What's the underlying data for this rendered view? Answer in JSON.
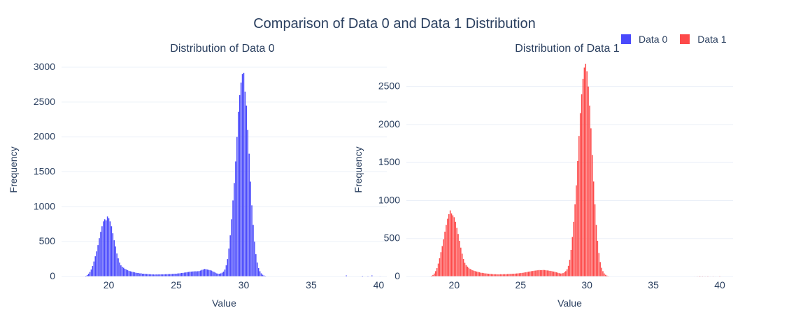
{
  "title": "Comparison of Data 0 and Data 1 Distribution",
  "legend": [
    {
      "name": "Data 0",
      "color": "#4a4afc"
    },
    {
      "name": "Data 1",
      "color": "#fd4a4a"
    }
  ],
  "chart_data": [
    {
      "type": "bar",
      "subtitle": "Distribution of Data 0",
      "series_name": "Data 0",
      "color": "#4a4afc",
      "xlabel": "Value",
      "ylabel": "Frequency",
      "xlim": [
        16.5,
        40.6
      ],
      "ylim": [
        0,
        3060
      ],
      "xticks": [
        20,
        25,
        30,
        35,
        40
      ],
      "yticks": [
        0,
        500,
        1000,
        1500,
        2000,
        2500,
        3000
      ],
      "bin_width": 0.1,
      "bins": [
        [
          18.2,
          5
        ],
        [
          18.3,
          10
        ],
        [
          18.4,
          20
        ],
        [
          18.5,
          40
        ],
        [
          18.6,
          65
        ],
        [
          18.7,
          100
        ],
        [
          18.8,
          150
        ],
        [
          18.9,
          215
        ],
        [
          19.0,
          290
        ],
        [
          19.1,
          360
        ],
        [
          19.2,
          450
        ],
        [
          19.3,
          550
        ],
        [
          19.4,
          640
        ],
        [
          19.5,
          720
        ],
        [
          19.6,
          790
        ],
        [
          19.7,
          820
        ],
        [
          19.8,
          805
        ],
        [
          19.9,
          860
        ],
        [
          20.0,
          835
        ],
        [
          20.1,
          790
        ],
        [
          20.2,
          720
        ],
        [
          20.3,
          620
        ],
        [
          20.4,
          520
        ],
        [
          20.5,
          430
        ],
        [
          20.6,
          330
        ],
        [
          20.7,
          260
        ],
        [
          20.8,
          200
        ],
        [
          20.9,
          160
        ],
        [
          21.0,
          140
        ],
        [
          21.1,
          125
        ],
        [
          21.2,
          110
        ],
        [
          21.3,
          100
        ],
        [
          21.4,
          90
        ],
        [
          21.5,
          80
        ],
        [
          21.6,
          75
        ],
        [
          21.7,
          70
        ],
        [
          21.8,
          65
        ],
        [
          21.9,
          60
        ],
        [
          22.0,
          55
        ],
        [
          22.1,
          50
        ],
        [
          22.2,
          50
        ],
        [
          22.3,
          45
        ],
        [
          22.4,
          45
        ],
        [
          22.5,
          40
        ],
        [
          22.6,
          40
        ],
        [
          22.7,
          38
        ],
        [
          22.8,
          36
        ],
        [
          22.9,
          35
        ],
        [
          23.0,
          33
        ],
        [
          23.1,
          32
        ],
        [
          23.2,
          30
        ],
        [
          23.3,
          30
        ],
        [
          23.4,
          28
        ],
        [
          23.5,
          30
        ],
        [
          23.6,
          29
        ],
        [
          23.7,
          30
        ],
        [
          23.8,
          30
        ],
        [
          23.9,
          31
        ],
        [
          24.0,
          30
        ],
        [
          24.1,
          32
        ],
        [
          24.2,
          33
        ],
        [
          24.3,
          33
        ],
        [
          24.4,
          34
        ],
        [
          24.5,
          35
        ],
        [
          24.6,
          35
        ],
        [
          24.7,
          37
        ],
        [
          24.8,
          38
        ],
        [
          24.9,
          40
        ],
        [
          25.0,
          40
        ],
        [
          25.1,
          43
        ],
        [
          25.2,
          45
        ],
        [
          25.3,
          47
        ],
        [
          25.4,
          50
        ],
        [
          25.5,
          52
        ],
        [
          25.6,
          56
        ],
        [
          25.7,
          58
        ],
        [
          25.8,
          62
        ],
        [
          25.9,
          65
        ],
        [
          26.0,
          68
        ],
        [
          26.1,
          70
        ],
        [
          26.2,
          72
        ],
        [
          26.3,
          73
        ],
        [
          26.4,
          75
        ],
        [
          26.5,
          74
        ],
        [
          26.6,
          76
        ],
        [
          26.7,
          78
        ],
        [
          26.8,
          85
        ],
        [
          26.9,
          95
        ],
        [
          27.0,
          100
        ],
        [
          27.1,
          108
        ],
        [
          27.2,
          105
        ],
        [
          27.3,
          100
        ],
        [
          27.4,
          95
        ],
        [
          27.5,
          92
        ],
        [
          27.6,
          85
        ],
        [
          27.7,
          75
        ],
        [
          27.8,
          65
        ],
        [
          27.9,
          55
        ],
        [
          28.0,
          45
        ],
        [
          28.1,
          40
        ],
        [
          28.2,
          40
        ],
        [
          28.3,
          45
        ],
        [
          28.4,
          55
        ],
        [
          28.5,
          70
        ],
        [
          28.6,
          100
        ],
        [
          28.7,
          160
        ],
        [
          28.8,
          250
        ],
        [
          28.9,
          400
        ],
        [
          29.0,
          590
        ],
        [
          29.1,
          820
        ],
        [
          29.2,
          1090
        ],
        [
          29.3,
          1340
        ],
        [
          29.4,
          1650
        ],
        [
          29.5,
          2000
        ],
        [
          29.6,
          2360
        ],
        [
          29.7,
          2600
        ],
        [
          29.8,
          2780
        ],
        [
          29.9,
          2900
        ],
        [
          30.0,
          2920
        ],
        [
          30.1,
          2650
        ],
        [
          30.2,
          2450
        ],
        [
          30.3,
          2100
        ],
        [
          30.4,
          1760
        ],
        [
          30.5,
          1360
        ],
        [
          30.6,
          1020
        ],
        [
          30.7,
          740
        ],
        [
          30.8,
          500
        ],
        [
          30.9,
          320
        ],
        [
          31.0,
          200
        ],
        [
          31.1,
          120
        ],
        [
          31.2,
          75
        ],
        [
          31.3,
          45
        ],
        [
          31.4,
          25
        ],
        [
          31.5,
          15
        ],
        [
          31.6,
          8
        ],
        [
          31.7,
          5
        ],
        [
          31.8,
          3
        ],
        [
          31.9,
          2
        ],
        [
          36.1,
          2
        ],
        [
          37.2,
          3
        ],
        [
          37.6,
          15
        ],
        [
          38.0,
          4
        ],
        [
          38.5,
          3
        ],
        [
          38.8,
          10
        ],
        [
          39.0,
          3
        ],
        [
          39.2,
          8
        ],
        [
          39.5,
          15
        ],
        [
          39.8,
          5
        ],
        [
          40.1,
          6
        ],
        [
          40.4,
          4
        ]
      ]
    },
    {
      "type": "bar",
      "subtitle": "Distribution of Data 1",
      "series_name": "Data 1",
      "color": "#fd4a4a",
      "xlabel": "Value",
      "ylabel": "Frequency",
      "xlim": [
        16.4,
        41.0
      ],
      "ylim": [
        0,
        2810
      ],
      "xticks": [
        20,
        25,
        30,
        35,
        40
      ],
      "yticks": [
        0,
        500,
        1000,
        1500,
        2000,
        2500
      ],
      "bin_width": 0.1,
      "bins": [
        [
          18.2,
          5
        ],
        [
          18.3,
          10
        ],
        [
          18.4,
          20
        ],
        [
          18.5,
          40
        ],
        [
          18.6,
          70
        ],
        [
          18.7,
          110
        ],
        [
          18.8,
          170
        ],
        [
          18.9,
          240
        ],
        [
          19.0,
          320
        ],
        [
          19.1,
          400
        ],
        [
          19.2,
          490
        ],
        [
          19.3,
          590
        ],
        [
          19.4,
          680
        ],
        [
          19.5,
          760
        ],
        [
          19.6,
          820
        ],
        [
          19.7,
          870
        ],
        [
          19.8,
          830
        ],
        [
          19.9,
          805
        ],
        [
          20.0,
          780
        ],
        [
          20.1,
          720
        ],
        [
          20.2,
          640
        ],
        [
          20.3,
          560
        ],
        [
          20.4,
          470
        ],
        [
          20.5,
          380
        ],
        [
          20.6,
          300
        ],
        [
          20.7,
          230
        ],
        [
          20.8,
          180
        ],
        [
          20.9,
          150
        ],
        [
          21.0,
          130
        ],
        [
          21.1,
          115
        ],
        [
          21.2,
          100
        ],
        [
          21.3,
          90
        ],
        [
          21.4,
          82
        ],
        [
          21.5,
          75
        ],
        [
          21.6,
          70
        ],
        [
          21.7,
          65
        ],
        [
          21.8,
          60
        ],
        [
          21.9,
          55
        ],
        [
          22.0,
          50
        ],
        [
          22.1,
          48
        ],
        [
          22.2,
          45
        ],
        [
          22.3,
          42
        ],
        [
          22.4,
          40
        ],
        [
          22.5,
          38
        ],
        [
          22.6,
          36
        ],
        [
          22.7,
          34
        ],
        [
          22.8,
          33
        ],
        [
          22.9,
          31
        ],
        [
          23.0,
          30
        ],
        [
          23.1,
          30
        ],
        [
          23.2,
          29
        ],
        [
          23.3,
          28
        ],
        [
          23.4,
          28
        ],
        [
          23.5,
          30
        ],
        [
          23.6,
          29
        ],
        [
          23.7,
          30
        ],
        [
          23.8,
          31
        ],
        [
          23.9,
          30
        ],
        [
          24.0,
          32
        ],
        [
          24.1,
          33
        ],
        [
          24.2,
          34
        ],
        [
          24.3,
          35
        ],
        [
          24.4,
          36
        ],
        [
          24.5,
          37
        ],
        [
          24.6,
          38
        ],
        [
          24.7,
          40
        ],
        [
          24.8,
          41
        ],
        [
          24.9,
          43
        ],
        [
          25.0,
          45
        ],
        [
          25.1,
          47
        ],
        [
          25.2,
          50
        ],
        [
          25.3,
          53
        ],
        [
          25.4,
          56
        ],
        [
          25.5,
          60
        ],
        [
          25.6,
          63
        ],
        [
          25.7,
          66
        ],
        [
          25.8,
          70
        ],
        [
          25.9,
          72
        ],
        [
          26.0,
          75
        ],
        [
          26.1,
          78
        ],
        [
          26.2,
          80
        ],
        [
          26.3,
          82
        ],
        [
          26.4,
          85
        ],
        [
          26.5,
          83
        ],
        [
          26.6,
          84
        ],
        [
          26.7,
          86
        ],
        [
          26.8,
          85
        ],
        [
          26.9,
          82
        ],
        [
          27.0,
          80
        ],
        [
          27.1,
          78
        ],
        [
          27.2,
          75
        ],
        [
          27.3,
          72
        ],
        [
          27.4,
          68
        ],
        [
          27.5,
          65
        ],
        [
          27.6,
          60
        ],
        [
          27.7,
          55
        ],
        [
          27.8,
          50
        ],
        [
          27.9,
          45
        ],
        [
          28.0,
          40
        ],
        [
          28.1,
          40
        ],
        [
          28.2,
          45
        ],
        [
          28.3,
          55
        ],
        [
          28.4,
          70
        ],
        [
          28.5,
          95
        ],
        [
          28.6,
          140
        ],
        [
          28.7,
          220
        ],
        [
          28.8,
          350
        ],
        [
          28.9,
          520
        ],
        [
          29.0,
          720
        ],
        [
          29.1,
          950
        ],
        [
          29.2,
          1200
        ],
        [
          29.3,
          1520
        ],
        [
          29.4,
          1850
        ],
        [
          29.5,
          2150
        ],
        [
          29.6,
          2400
        ],
        [
          29.7,
          2600
        ],
        [
          29.8,
          2750
        ],
        [
          29.9,
          2800
        ],
        [
          30.0,
          2700
        ],
        [
          30.1,
          2500
        ],
        [
          30.2,
          2250
        ],
        [
          30.3,
          1950
        ],
        [
          30.4,
          1600
        ],
        [
          30.5,
          1250
        ],
        [
          30.6,
          950
        ],
        [
          30.7,
          680
        ],
        [
          30.8,
          470
        ],
        [
          30.9,
          310
        ],
        [
          31.0,
          190
        ],
        [
          31.1,
          115
        ],
        [
          31.2,
          70
        ],
        [
          31.3,
          40
        ],
        [
          31.4,
          22
        ],
        [
          31.5,
          12
        ],
        [
          31.6,
          7
        ],
        [
          31.7,
          4
        ],
        [
          31.8,
          2
        ],
        [
          35.6,
          2
        ],
        [
          36.5,
          3
        ],
        [
          37.0,
          2
        ],
        [
          37.9,
          4
        ],
        [
          38.1,
          5
        ],
        [
          38.3,
          6
        ],
        [
          38.5,
          8
        ],
        [
          38.7,
          7
        ],
        [
          38.9,
          6
        ],
        [
          39.1,
          7
        ],
        [
          39.3,
          5
        ],
        [
          39.5,
          6
        ],
        [
          39.7,
          5
        ],
        [
          40.0,
          7
        ],
        [
          40.3,
          3
        ],
        [
          40.6,
          4
        ]
      ]
    }
  ]
}
